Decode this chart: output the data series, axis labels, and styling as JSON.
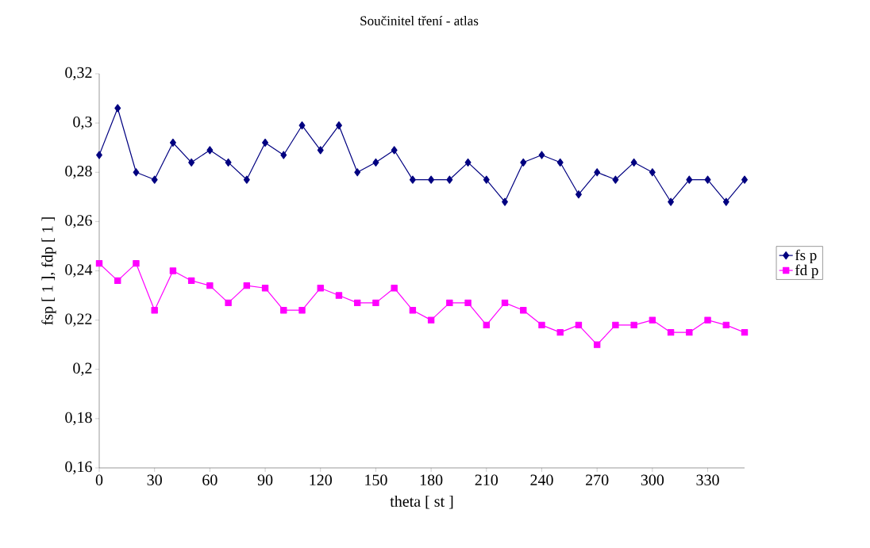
{
  "chart_data": {
    "type": "line",
    "title": "Součinitel tření - atlas",
    "xlabel": "theta [ st ]",
    "ylabel": "fsp [ 1 ], fdp [ 1 ]",
    "x": [
      0,
      10,
      20,
      30,
      40,
      50,
      60,
      70,
      80,
      90,
      100,
      110,
      120,
      130,
      140,
      150,
      160,
      170,
      180,
      190,
      200,
      210,
      220,
      230,
      240,
      250,
      260,
      270,
      280,
      290,
      300,
      310,
      320,
      330,
      340,
      350
    ],
    "series": [
      {
        "name": "fs p",
        "color": "#000080",
        "marker": "diamond",
        "values": [
          0.287,
          0.306,
          0.28,
          0.277,
          0.292,
          0.284,
          0.289,
          0.284,
          0.277,
          0.292,
          0.287,
          0.299,
          0.289,
          0.299,
          0.28,
          0.284,
          0.289,
          0.277,
          0.277,
          0.277,
          0.284,
          0.277,
          0.268,
          0.284,
          0.287,
          0.284,
          0.271,
          0.28,
          0.277,
          0.284,
          0.28,
          0.268,
          0.277,
          0.277,
          0.268,
          0.277
        ]
      },
      {
        "name": "fd p",
        "color": "#ff00ff",
        "marker": "square",
        "values": [
          0.243,
          0.236,
          0.243,
          0.224,
          0.24,
          0.236,
          0.234,
          0.227,
          0.234,
          0.233,
          0.224,
          0.224,
          0.233,
          0.23,
          0.227,
          0.227,
          0.233,
          0.224,
          0.22,
          0.227,
          0.227,
          0.218,
          0.227,
          0.224,
          0.218,
          0.215,
          0.218,
          0.21,
          0.218,
          0.218,
          0.22,
          0.215,
          0.215,
          0.22,
          0.218,
          0.215
        ]
      }
    ],
    "xlim": [
      0,
      350
    ],
    "xticks": [
      0,
      30,
      60,
      90,
      120,
      150,
      180,
      210,
      240,
      270,
      300,
      330
    ],
    "ylim": [
      0.16,
      0.32
    ],
    "yticks": [
      {
        "value": 0.16,
        "label": "0,16"
      },
      {
        "value": 0.18,
        "label": "0,18"
      },
      {
        "value": 0.2,
        "label": "0,2"
      },
      {
        "value": 0.22,
        "label": "0,22"
      },
      {
        "value": 0.24,
        "label": "0,24"
      },
      {
        "value": 0.26,
        "label": "0,26"
      },
      {
        "value": 0.28,
        "label": "0,28"
      },
      {
        "value": 0.3,
        "label": "0,3"
      },
      {
        "value": 0.32,
        "label": "0,32"
      }
    ],
    "legend": "right",
    "grid": false,
    "line_style": "solid"
  }
}
